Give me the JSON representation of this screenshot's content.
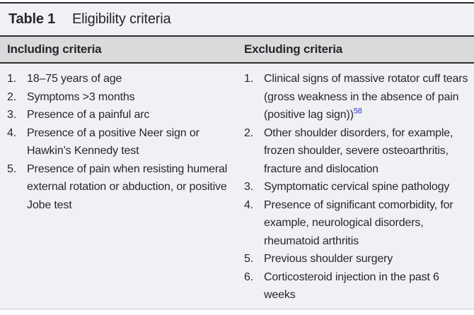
{
  "table": {
    "label": "Table 1",
    "title": "Eligibility criteria",
    "colors": {
      "rule_dark": "#2b2b2d",
      "header_bg": "#d9dadc",
      "body_bg": "#f0f1f4",
      "text": "#27272a",
      "reference_blue": "#2d37c8",
      "rule_light": "#c9cbce"
    },
    "columns": [
      {
        "header": "Including criteria",
        "items": [
          {
            "num": "1.",
            "text": "18–75 years of age"
          },
          {
            "num": "2.",
            "text": "Symptoms >3 months"
          },
          {
            "num": "3.",
            "text": "Presence of a painful arc"
          },
          {
            "num": "4.",
            "text": "Presence of a positive Neer sign or Hawkin’s Kennedy test"
          },
          {
            "num": "5.",
            "text": "Presence of pain when resisting humeral external rotation or abduction, or positive Jobe test"
          }
        ]
      },
      {
        "header": "Excluding criteria",
        "items": [
          {
            "num": "1.",
            "text": "Clinical signs of massive rotator cuff tears (gross weakness in the absence of pain (positive lag sign))",
            "ref": "58"
          },
          {
            "num": "2.",
            "text": "Other shoulder disorders, for example, frozen shoulder, severe osteoarthritis, fracture and dislocation"
          },
          {
            "num": "3.",
            "text": "Symptomatic cervical spine pathology"
          },
          {
            "num": "4.",
            "text": "Presence of significant comorbidity, for example, neurological disorders, rheumatoid arthritis"
          },
          {
            "num": "5.",
            "text": "Previous shoulder surgery"
          },
          {
            "num": "6.",
            "text": "Corticosteroid injection in the past 6 weeks"
          }
        ]
      }
    ]
  }
}
